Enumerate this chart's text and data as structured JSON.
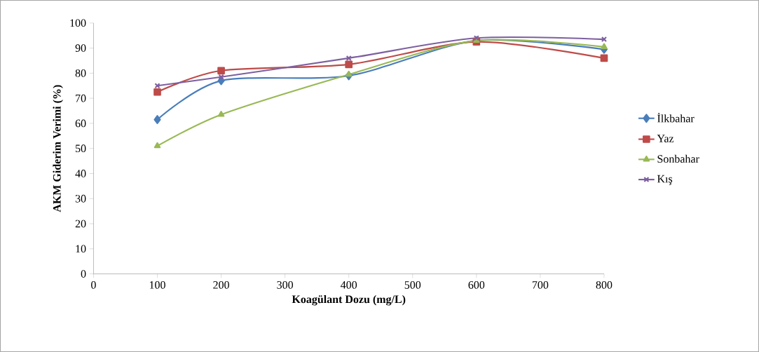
{
  "chart_data": {
    "type": "line",
    "xlabel": "Koagülant Dozu (mg/L)",
    "ylabel": "AKM Giderim Verimi (%)",
    "x": [
      100,
      200,
      400,
      600,
      800
    ],
    "series": [
      {
        "name": "İlkbahar",
        "color": "#4a7ebb",
        "marker": "diamond",
        "values": [
          61.5,
          77,
          79,
          93,
          89.5
        ]
      },
      {
        "name": "Yaz",
        "color": "#be4b48",
        "marker": "square",
        "values": [
          72.5,
          81,
          83.5,
          92.5,
          86
        ]
      },
      {
        "name": "Sonbahar",
        "color": "#98b954",
        "marker": "triangle",
        "values": [
          51,
          63.5,
          79.5,
          93,
          90.5
        ]
      },
      {
        "name": "Kış",
        "color": "#7d60a0",
        "marker": "cross",
        "values": [
          75,
          78.5,
          86,
          94,
          93.5
        ]
      }
    ],
    "xlim": [
      0,
      800
    ],
    "xticks": [
      0,
      100,
      200,
      300,
      400,
      500,
      600,
      700,
      800
    ],
    "ylim": [
      0,
      100
    ],
    "yticks": [
      0,
      10,
      20,
      30,
      40,
      50,
      60,
      70,
      80,
      90,
      100
    ],
    "grid": false,
    "legend": "right",
    "line_style": "solid"
  }
}
